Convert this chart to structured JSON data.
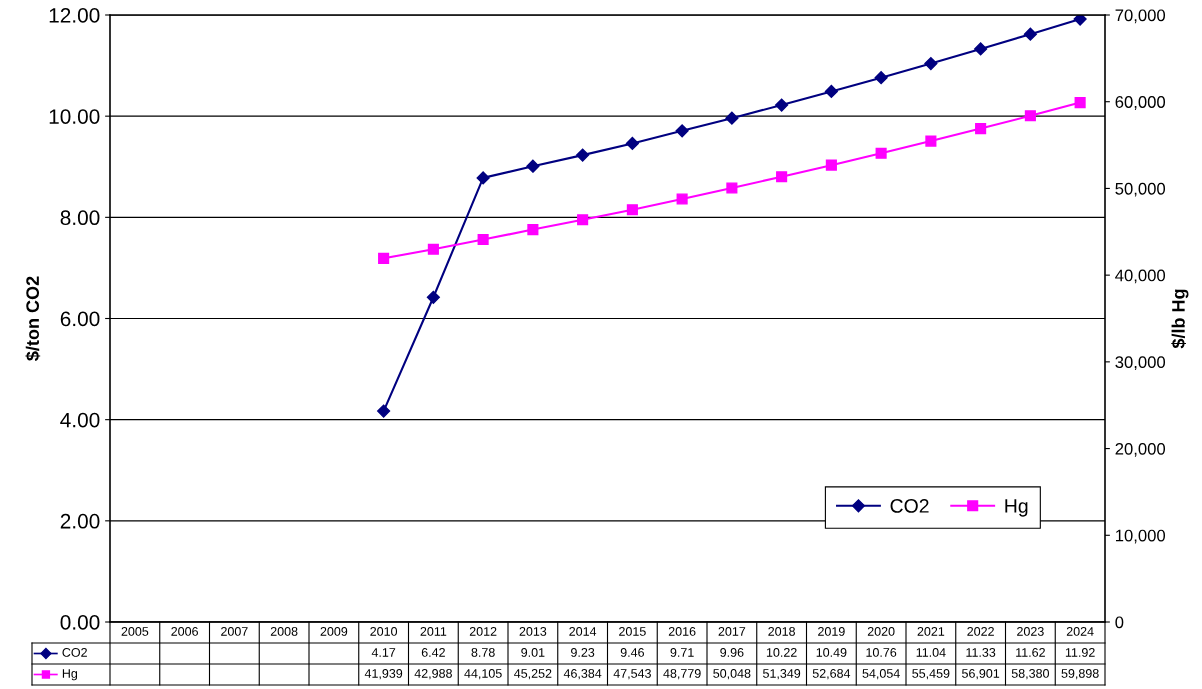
{
  "chart_data": {
    "type": "line",
    "categories": [
      "2005",
      "2006",
      "2007",
      "2008",
      "2009",
      "2010",
      "2011",
      "2012",
      "2013",
      "2014",
      "2015",
      "2016",
      "2017",
      "2018",
      "2019",
      "2020",
      "2021",
      "2022",
      "2023",
      "2024"
    ],
    "ylabel": "$/ton CO2",
    "y2label": "$/lb Hg",
    "ylim": [
      0,
      12
    ],
    "yticks": [
      {
        "value": 0,
        "label": "0.00"
      },
      {
        "value": 2,
        "label": "2.00"
      },
      {
        "value": 4,
        "label": "4.00"
      },
      {
        "value": 6,
        "label": "6.00"
      },
      {
        "value": 8,
        "label": "8.00"
      },
      {
        "value": 10,
        "label": "10.00"
      },
      {
        "value": 12,
        "label": "12.00"
      }
    ],
    "y2lim": [
      0,
      70000
    ],
    "y2ticks": [
      0,
      {
        "value": 10000,
        "label": "10,000"
      },
      {
        "value": 20000,
        "label": "20,000"
      },
      {
        "value": 30000,
        "label": "30,000"
      },
      {
        "value": 40000,
        "label": "40,000"
      },
      {
        "value": 50000,
        "label": "50,000"
      },
      {
        "value": 60000,
        "label": "60,000"
      },
      {
        "value": 70000,
        "label": "70,000"
      }
    ],
    "grid": "y",
    "legend": "bottom right",
    "series": [
      {
        "name": "CO2",
        "color": "#000080",
        "marker": "diamond",
        "values": [
          null,
          null,
          null,
          null,
          null,
          4.17,
          6.42,
          8.78,
          9.01,
          9.23,
          9.46,
          9.71,
          9.96,
          10.22,
          10.49,
          10.76,
          11.04,
          11.33,
          11.62,
          11.92
        ],
        "value_labels": [
          null,
          null,
          null,
          null,
          null,
          "4.17",
          "6.42",
          "8.78",
          "9.01",
          "9.23",
          "9.46",
          "9.71",
          "9.96",
          "10.22",
          "10.49",
          "10.76",
          "11.04",
          "11.33",
          "11.62",
          "11.92"
        ]
      },
      {
        "name": "Hg",
        "color": "#ff00ff",
        "marker": "square",
        "axis": "y2",
        "values": [
          null,
          null,
          null,
          null,
          null,
          41939,
          42988,
          44105,
          45252,
          46384,
          47543,
          48779,
          50048,
          51349,
          52684,
          54054,
          55459,
          56901,
          58380,
          59898
        ],
        "value_labels": [
          null,
          null,
          null,
          null,
          null,
          "41,939",
          "42,988",
          "44,105",
          "45,252",
          "46,384",
          "47,543",
          "48,779",
          "50,048",
          "51,349",
          "52,684",
          "54,054",
          "55,459",
          "56,901",
          "58,380",
          "59,898"
        ]
      }
    ]
  }
}
